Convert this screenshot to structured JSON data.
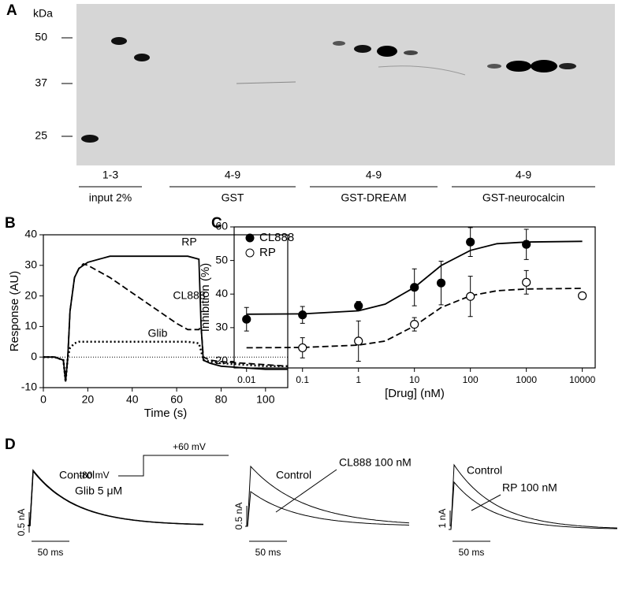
{
  "panel_labels": [
    "A",
    "B",
    "C",
    "D"
  ],
  "blot": {
    "unit": "kDa",
    "markers": [
      "50",
      "37",
      "25"
    ],
    "lanes": [
      {
        "range": "1-3",
        "label": "input 2%"
      },
      {
        "range": "4-9",
        "label": "GST"
      },
      {
        "range": "4-9",
        "label": "GST-DREAM"
      },
      {
        "range": "4-9",
        "label": "GST-neurocalcin"
      }
    ]
  },
  "chart_data": [
    {
      "type": "line",
      "xlabel": "Time (s)",
      "ylabel": "Response (AU)",
      "x": [
        0,
        5,
        9,
        10,
        11,
        12,
        14,
        16,
        18,
        20,
        30,
        40,
        50,
        60,
        65,
        70,
        71,
        72,
        75,
        80,
        90,
        100,
        110
      ],
      "series": [
        {
          "name": "RP",
          "color": "#000000",
          "style": "solid",
          "values": [
            0,
            0,
            -1,
            -8,
            0,
            15,
            26,
            29,
            30,
            31,
            33,
            33,
            33,
            33,
            33,
            32,
            10,
            -1,
            -2,
            -3,
            -3.5,
            -4,
            -4
          ]
        },
        {
          "name": "CL888",
          "color": "#000000",
          "style": "dashed",
          "values": [
            0,
            0,
            -1,
            -8,
            0,
            15,
            26,
            29,
            30.5,
            30,
            26,
            21,
            16,
            11,
            9,
            9,
            10,
            0,
            -1,
            -1.5,
            -2,
            -2.5,
            -3
          ]
        },
        {
          "name": "Glib",
          "color": "#000000",
          "style": "dotted",
          "values": [
            0,
            0,
            -1,
            -8,
            0,
            3,
            4.5,
            5,
            5,
            5,
            5,
            5,
            5,
            5,
            5,
            4.5,
            2,
            -1,
            -1.5,
            -2,
            -2.5,
            -3,
            -3
          ]
        }
      ],
      "xlim": [
        0,
        110
      ],
      "xticks": [
        0,
        20,
        40,
        60,
        80,
        100
      ],
      "ylim": [
        -10,
        40
      ],
      "yticks": [
        -10,
        0,
        10,
        20,
        30,
        40
      ],
      "zero_line": true
    },
    {
      "type": "scatter",
      "xlabel": "[Drug] (nM)",
      "ylabel": "Inhibition (%)",
      "xscale": "log",
      "legend": "upper left",
      "series": [
        {
          "name": "CL888",
          "color": "#000000",
          "marker": "filled",
          "style": "solid",
          "x": [
            0.01,
            0.1,
            1,
            10,
            30,
            100,
            1000
          ],
          "values": [
            32.5,
            33.8,
            36.5,
            42,
            43.3,
            55.5,
            54.8
          ],
          "errors": [
            3.5,
            2.5,
            1.3,
            5.5,
            6.5,
            4.3,
            4.5
          ],
          "fit_x": [
            0.01,
            0.1,
            1,
            3,
            10,
            30,
            100,
            300,
            1000,
            10000
          ],
          "fit_values": [
            34,
            34.1,
            35,
            37,
            42,
            48.5,
            53,
            55,
            55.5,
            55.7
          ]
        },
        {
          "name": "RP",
          "color": "#000000",
          "marker": "open",
          "style": "dashed",
          "x": [
            0.1,
            1,
            10,
            100,
            1000,
            10000
          ],
          "values": [
            24,
            26,
            31,
            39.3,
            43.5,
            39.5
          ],
          "errors": [
            3,
            6,
            2,
            6,
            3.5,
            null
          ],
          "fit_x": [
            0.01,
            0.1,
            1,
            3,
            10,
            30,
            100,
            300,
            1000,
            10000
          ],
          "fit_values": [
            24,
            24.1,
            24.8,
            26,
            30.5,
            36,
            39.5,
            41,
            41.5,
            41.7
          ]
        }
      ],
      "xlim": [
        0.006,
        17000
      ],
      "xticks": [
        0.01,
        0.1,
        1,
        10,
        100,
        1000,
        10000
      ],
      "ylim": [
        18,
        60
      ],
      "yticks": [
        20,
        30,
        40,
        50,
        60
      ]
    }
  ],
  "traces": {
    "protocol": [
      "-80 mV",
      "+60 mV"
    ],
    "panels": [
      {
        "labels": [
          "Control",
          "Glib 5 μM"
        ],
        "scale_current": "0.5 nA",
        "scale_time": "50 ms"
      },
      {
        "labels": [
          "Control",
          "CL888 100 nM"
        ],
        "scale_current": "0.5 nA",
        "scale_time": "50 ms"
      },
      {
        "labels": [
          "Control",
          "RP 100 nM"
        ],
        "scale_current": "1 nA",
        "scale_time": "50 ms"
      }
    ]
  }
}
